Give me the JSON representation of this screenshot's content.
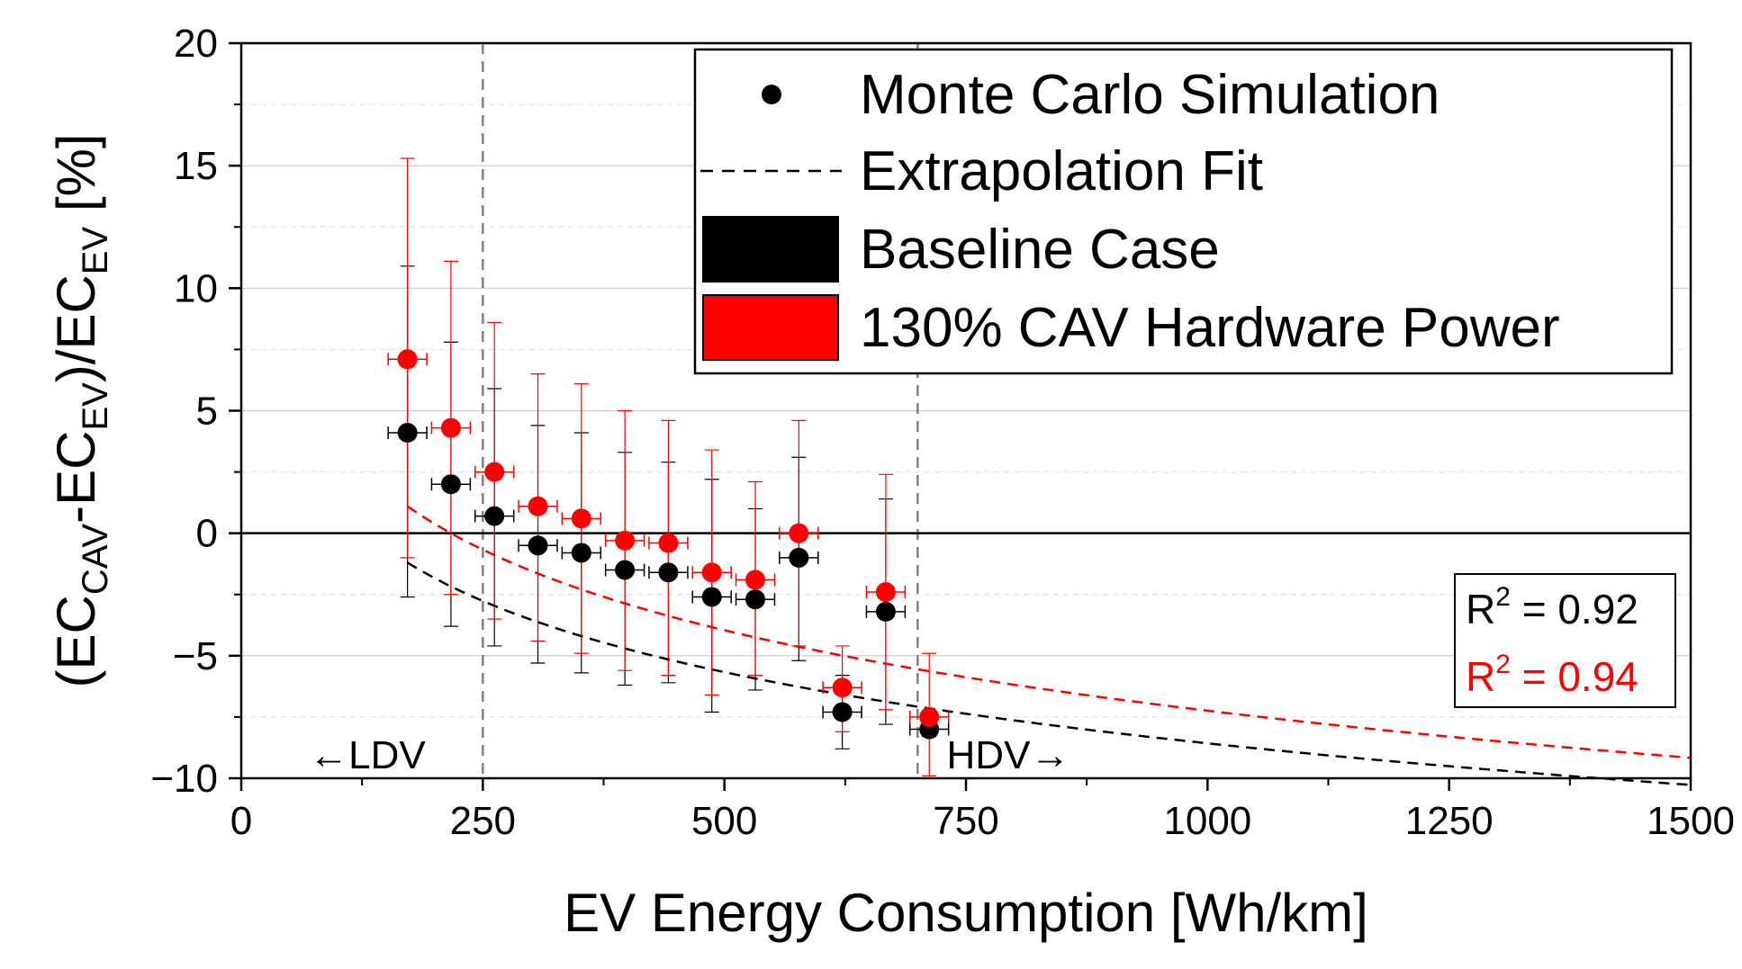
{
  "chart_data": {
    "type": "scatter",
    "xlabel": "EV Energy Consumption [Wh/km]",
    "ylabel": {
      "parts": [
        {
          "t": "(EC",
          "sub": false
        },
        {
          "t": "CAV",
          "sub": true
        },
        {
          "t": "-EC",
          "sub": false
        },
        {
          "t": "EV",
          "sub": true
        },
        {
          "t": ")/EC",
          "sub": false
        },
        {
          "t": "EV",
          "sub": true
        },
        {
          "t": " [%]",
          "sub": false
        }
      ]
    },
    "xlim": [
      0,
      1500
    ],
    "ylim": [
      -10,
      20
    ],
    "xticks": [
      0,
      250,
      500,
      750,
      1000,
      1250,
      1500
    ],
    "xtick_labels": [
      "0",
      "250",
      "500",
      "750",
      "1000",
      "1250",
      "1500"
    ],
    "yticks": [
      -10,
      -5,
      0,
      5,
      10,
      15,
      20
    ],
    "ytick_labels": [
      "−10",
      "−5",
      "0",
      "5",
      "10",
      "15",
      "20"
    ],
    "grid": true,
    "vlines": [
      250,
      700
    ],
    "region_labels": [
      {
        "text": "←LDV",
        "x": 70,
        "y": -9
      },
      {
        "text": "HDV→",
        "x": 730,
        "y": -9
      }
    ],
    "legend": {
      "position": "top-right",
      "entries": [
        {
          "label": "Monte Carlo Simulation",
          "marker": "dot"
        },
        {
          "label": "Extrapolation Fit",
          "marker": "dash"
        },
        {
          "label": "Baseline Case",
          "marker": "box",
          "color": "#000000"
        },
        {
          "label": "130% CAV Hardware Power",
          "marker": "box",
          "color": "#ff0000"
        }
      ]
    },
    "r2": [
      {
        "label": "R",
        "sup": "2",
        "value": " = 0.92",
        "color": "#000000"
      },
      {
        "label": "R",
        "sup": "2",
        "value": " = 0.94",
        "color": "#ff0000"
      }
    ],
    "series": [
      {
        "name": "Baseline Case",
        "color": "#000000",
        "points": [
          {
            "x": 172,
            "y": 4.1,
            "ylo": -2.6,
            "yhi": 10.9,
            "xerr": 20
          },
          {
            "x": 217,
            "y": 2.0,
            "ylo": -3.8,
            "yhi": 7.8,
            "xerr": 20
          },
          {
            "x": 262,
            "y": 0.7,
            "ylo": -4.6,
            "yhi": 5.9,
            "xerr": 20
          },
          {
            "x": 307,
            "y": -0.5,
            "ylo": -5.3,
            "yhi": 4.4,
            "xerr": 20
          },
          {
            "x": 352,
            "y": -0.8,
            "ylo": -5.7,
            "yhi": 4.1,
            "xerr": 20
          },
          {
            "x": 397,
            "y": -1.5,
            "ylo": -6.2,
            "yhi": 3.3,
            "xerr": 20
          },
          {
            "x": 442,
            "y": -1.6,
            "ylo": -6.1,
            "yhi": 2.9,
            "xerr": 20
          },
          {
            "x": 487,
            "y": -2.6,
            "ylo": -7.3,
            "yhi": 2.2,
            "xerr": 20
          },
          {
            "x": 532,
            "y": -2.7,
            "ylo": -6.4,
            "yhi": 1.0,
            "xerr": 20
          },
          {
            "x": 577,
            "y": -1.0,
            "ylo": -5.2,
            "yhi": 3.1,
            "xerr": 20
          },
          {
            "x": 622,
            "y": -7.3,
            "ylo": -8.8,
            "yhi": -5.8,
            "xerr": 20
          },
          {
            "x": 667,
            "y": -3.2,
            "ylo": -7.8,
            "yhi": 1.4,
            "xerr": 20
          },
          {
            "x": 712,
            "y": -8.0,
            "ylo": -8.3,
            "yhi": -7.6,
            "xerr": 20
          }
        ],
        "fit": {
          "a": 20.37,
          "b": -4.19
        }
      },
      {
        "name": "130% CAV Hardware Power",
        "color": "#ff0000",
        "points": [
          {
            "x": 172,
            "y": 7.1,
            "ylo": -1.0,
            "yhi": 15.3,
            "xerr": 20
          },
          {
            "x": 217,
            "y": 4.3,
            "ylo": -2.5,
            "yhi": 11.1,
            "xerr": 20
          },
          {
            "x": 262,
            "y": 2.5,
            "ylo": -3.5,
            "yhi": 8.6,
            "xerr": 20
          },
          {
            "x": 307,
            "y": 1.1,
            "ylo": -4.4,
            "yhi": 6.5,
            "xerr": 20
          },
          {
            "x": 352,
            "y": 0.6,
            "ylo": -4.9,
            "yhi": 6.1,
            "xerr": 20
          },
          {
            "x": 397,
            "y": -0.3,
            "ylo": -5.6,
            "yhi": 5.0,
            "xerr": 20
          },
          {
            "x": 442,
            "y": -0.4,
            "ylo": -5.8,
            "yhi": 4.6,
            "xerr": 20
          },
          {
            "x": 487,
            "y": -1.6,
            "ylo": -6.6,
            "yhi": 3.4,
            "xerr": 20
          },
          {
            "x": 532,
            "y": -1.9,
            "ylo": -5.8,
            "yhi": 2.1,
            "xerr": 20
          },
          {
            "x": 577,
            "y": 0.0,
            "ylo": -4.6,
            "yhi": 4.6,
            "xerr": 20
          },
          {
            "x": 622,
            "y": -6.3,
            "ylo": -8.1,
            "yhi": -4.6,
            "xerr": 20
          },
          {
            "x": 667,
            "y": -2.4,
            "ylo": -7.2,
            "yhi": 2.4,
            "xerr": 20
          },
          {
            "x": 712,
            "y": -7.5,
            "ylo": -9.9,
            "yhi": -4.9,
            "xerr": 20
          }
        ],
        "fit": {
          "a": 25.5,
          "b": -4.74
        }
      }
    ]
  }
}
